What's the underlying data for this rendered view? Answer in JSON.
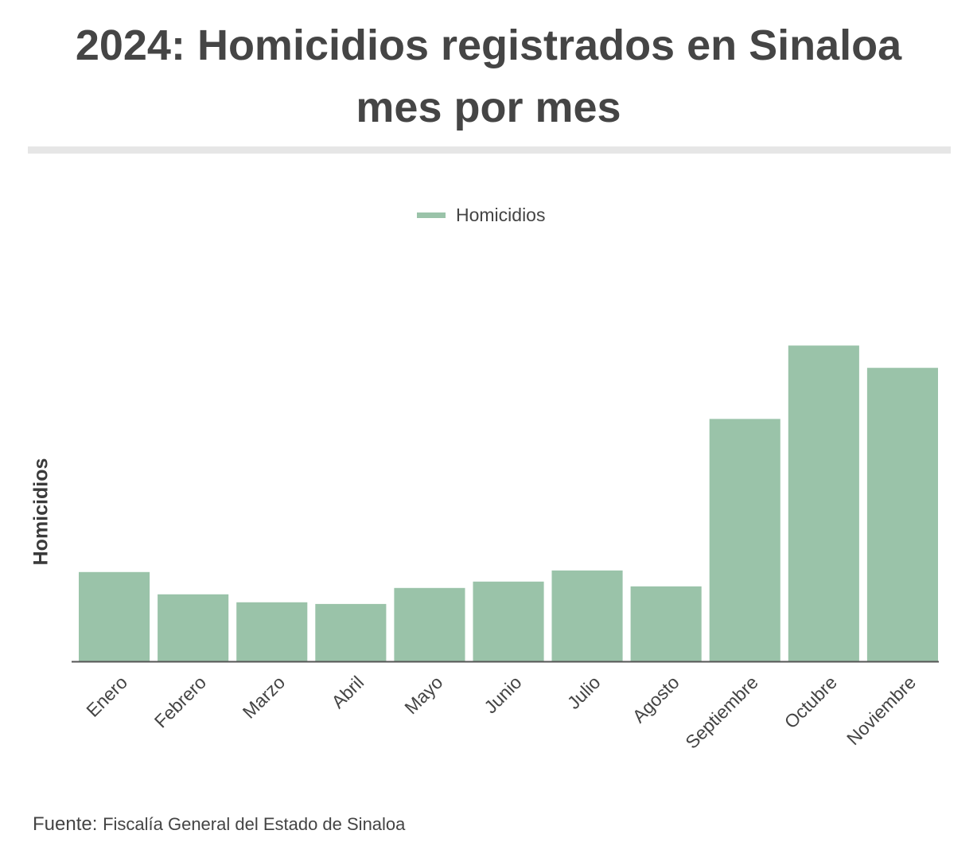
{
  "title_lines": [
    "2024: Homicidios registrados en Sinaloa",
    "mes por mes"
  ],
  "legend": {
    "label": "Homicidios",
    "color": "#9ac3a9"
  },
  "source": {
    "prefix": "Fuente:",
    "text": "Fiscalía General del Estado de Sinaloa"
  },
  "chart_data": {
    "type": "bar",
    "ylabel": "Homicidios",
    "xlabel": "",
    "categories": [
      "Enero",
      "Febrero",
      "Marzo",
      "Abril",
      "Mayo",
      "Junio",
      "Julio",
      "Agosto",
      "Septiembre",
      "Octubre",
      "Noviembre"
    ],
    "series": [
      {
        "name": "Homicidios",
        "values": [
          112,
          84,
          74,
          72,
          92,
          100,
          114,
          94,
          304,
          396,
          368
        ]
      }
    ],
    "ylim": [
      0,
      480
    ],
    "grid": false,
    "legend_position": "top-center",
    "bar_color": "#9ac3a9",
    "y_ticks_shown": false
  }
}
